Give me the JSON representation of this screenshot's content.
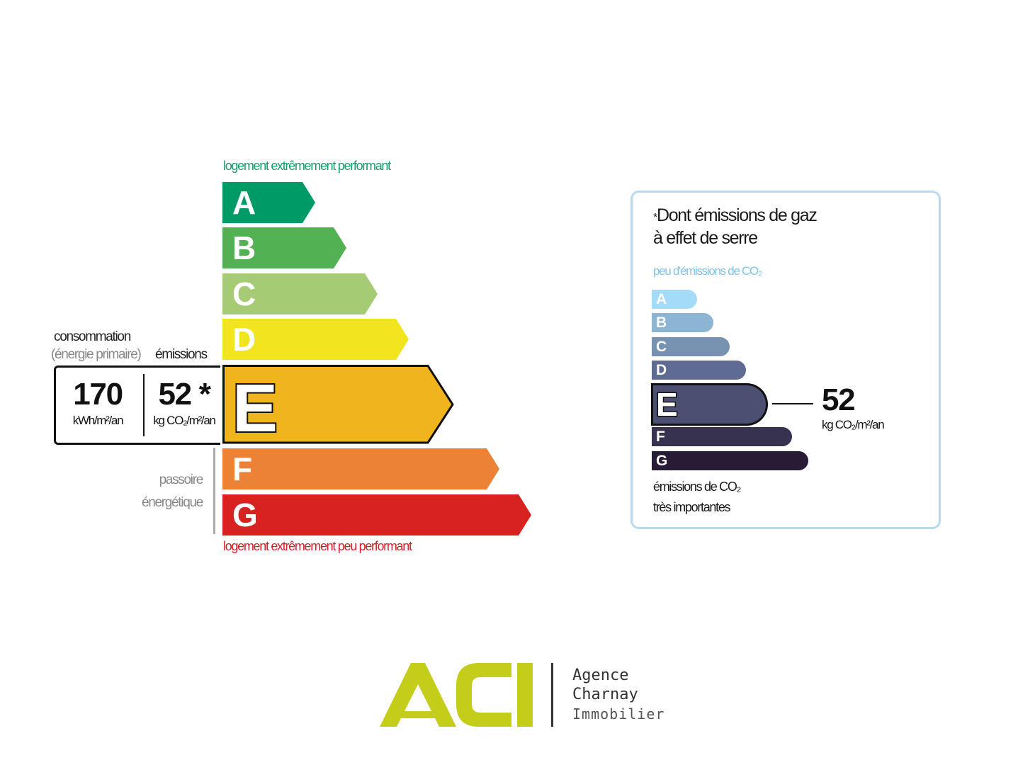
{
  "dpe": {
    "top_label": "logement extrêmement performant",
    "bottom_label": "logement extrêmement peu performant",
    "consumption_label": "consommation",
    "primary_energy_label": "(énergie primaire)",
    "emissions_label": "émissions",
    "consumption_value": "170",
    "consumption_unit": "kWh/m²/an",
    "emissions_value": "52 *",
    "emissions_unit": "kg CO₂/m²/an",
    "current_class": "E",
    "passoire_line1": "passoire",
    "passoire_line2": "énergétique",
    "classes": [
      {
        "letter": "A",
        "color": "#009a66"
      },
      {
        "letter": "B",
        "color": "#52b153"
      },
      {
        "letter": "C",
        "color": "#a5cc74"
      },
      {
        "letter": "D",
        "color": "#f0e51f"
      },
      {
        "letter": "E",
        "color": "#f0b41c"
      },
      {
        "letter": "F",
        "color": "#eb8235"
      },
      {
        "letter": "G",
        "color": "#d7221f"
      }
    ]
  },
  "ges": {
    "title_star": "*",
    "title_line1": "Dont émissions de gaz",
    "title_line2": "à effet de serre",
    "low_label": "peu d'émissions de CO₂",
    "high_label_line1": "émissions de CO₂",
    "high_label_line2": "très importantes",
    "value": "52",
    "unit": "kg CO₂/m²/an",
    "current_class": "E",
    "classes": [
      {
        "letter": "A",
        "color": "#a4dbf8"
      },
      {
        "letter": "B",
        "color": "#8cb4d3"
      },
      {
        "letter": "C",
        "color": "#7792b1"
      },
      {
        "letter": "D",
        "color": "#5f6b92"
      },
      {
        "letter": "E",
        "color": "#4b4f72"
      },
      {
        "letter": "F",
        "color": "#373250"
      },
      {
        "letter": "G",
        "color": "#281b35"
      }
    ]
  },
  "logo": {
    "brand": "ACI",
    "brand_color": "#c3cd1a",
    "line1": "Agence",
    "line2": "Charnay",
    "line3": "Immobilier"
  }
}
